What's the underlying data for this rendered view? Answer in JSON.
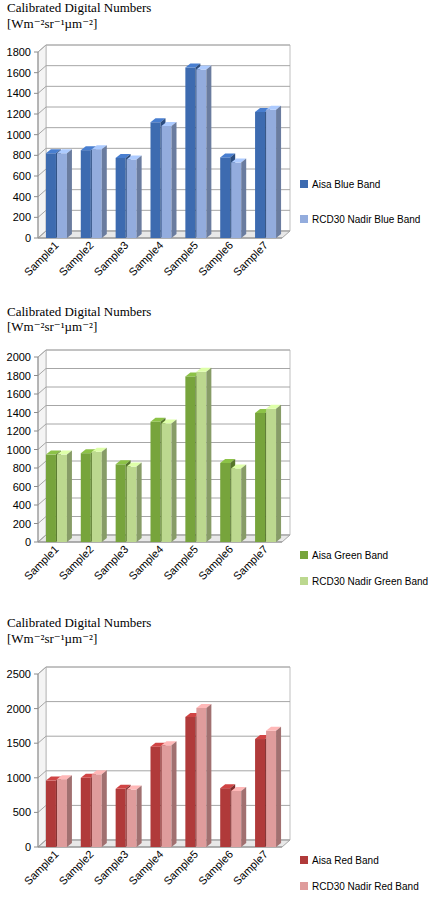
{
  "chart_data": [
    {
      "type": "bar",
      "title": "Calibrated Digital Numbers",
      "subtitle": "[Wm⁻²sr⁻¹µm⁻²]",
      "categories": [
        "Sample1",
        "Sample2",
        "Sample3",
        "Sample4",
        "Sample5",
        "Sample6",
        "Sample7"
      ],
      "series": [
        {
          "name": "Aisa Blue Band",
          "color": "#3d6bb0",
          "values": [
            820,
            850,
            775,
            1120,
            1650,
            780,
            1220
          ]
        },
        {
          "name": "RCD30 Nadir Blue Band",
          "color": "#93acdd",
          "values": [
            820,
            860,
            760,
            1085,
            1630,
            730,
            1240
          ]
        }
      ],
      "ylim": [
        0,
        1800
      ],
      "yticks": [
        0,
        200,
        400,
        600,
        800,
        1000,
        1200,
        1400,
        1600,
        1800
      ],
      "grid": true,
      "legend": "right"
    },
    {
      "type": "bar",
      "title": "Calibrated Digital Numbers",
      "subtitle": "[Wm⁻²sr⁻¹µm⁻²]",
      "categories": [
        "Sample1",
        "Sample2",
        "Sample3",
        "Sample4",
        "Sample5",
        "Sample6",
        "Sample7"
      ],
      "series": [
        {
          "name": "Aisa Green Band",
          "color": "#77a43c",
          "values": [
            945,
            960,
            840,
            1300,
            1790,
            855,
            1395
          ]
        },
        {
          "name": "RCD30 Nadir Green Band",
          "color": "#bcd88f",
          "values": [
            945,
            975,
            815,
            1280,
            1840,
            795,
            1440
          ]
        }
      ],
      "ylim": [
        0,
        2000
      ],
      "yticks": [
        0,
        200,
        400,
        600,
        800,
        1000,
        1200,
        1400,
        1600,
        1800,
        2000
      ],
      "grid": true,
      "legend": "bottom-right"
    },
    {
      "type": "bar",
      "title": "Calibrated Digital Numbers",
      "subtitle": "[Wm⁻²sr⁻¹µm⁻²]",
      "categories": [
        "Sample1",
        "Sample2",
        "Sample3",
        "Sample4",
        "Sample5",
        "Sample6",
        "Sample7"
      ],
      "series": [
        {
          "name": "Aisa Red Band",
          "color": "#b03a3a",
          "values": [
            960,
            1000,
            840,
            1450,
            1880,
            850,
            1560
          ]
        },
        {
          "name": "RCD30 Nadir Red Band",
          "color": "#df9c9c",
          "values": [
            980,
            1050,
            830,
            1470,
            2010,
            810,
            1680
          ]
        }
      ],
      "ylim": [
        0,
        2500
      ],
      "yticks": [
        0,
        500,
        1000,
        1500,
        2000,
        2500
      ],
      "grid": true,
      "legend": "bottom-right"
    }
  ]
}
